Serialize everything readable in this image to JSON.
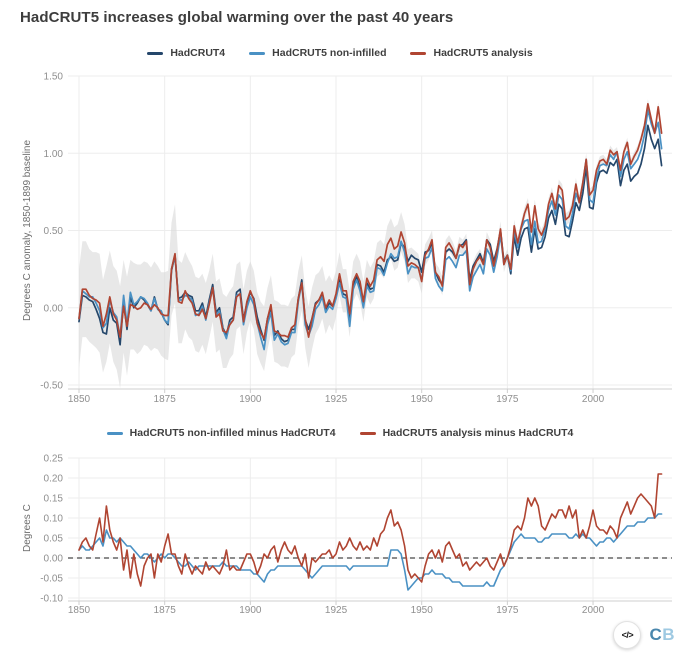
{
  "page": {
    "title": "HadCRUT5 increases global warming over the past 40 years",
    "background": "#ffffff"
  },
  "footer": {
    "embed_label": "</>",
    "logo_c": "C",
    "logo_b": "B",
    "logo_c_color": "#4a87ad",
    "logo_b_color": "#9ec9e2"
  },
  "colors": {
    "hadcrut4": "#25476b",
    "hadcrut5_non_infilled": "#4a91c4",
    "hadcrut5_analysis": "#b04532",
    "uncertainty_band": "#d8d8d8",
    "gridline": "#ededed",
    "axis_line": "#cfcfcf",
    "zero_dashed_line": "#1a1a1a",
    "title_text": "#3d3d3d",
    "tick_text": "#8f8f8f"
  },
  "chart_data": [
    {
      "type": "line",
      "panel": "top",
      "ylabel": "Degrees C anomaly, 1850-1899 baseline",
      "xlabel": "",
      "ylim": [
        -0.5,
        1.5
      ],
      "yticks": [
        1.5,
        1.0,
        0.5,
        0,
        -0.5
      ],
      "xticks": [
        1850,
        1875,
        1900,
        1925,
        1950,
        1975,
        2000
      ],
      "x_start": 1850,
      "x_end": 2020,
      "x_step": 1,
      "grid": true,
      "legend_position": "top-center",
      "uncertainty_band": {
        "applies_to": "HadCRUT5 analysis",
        "color": "#d8d8d8",
        "opacity": 0.6,
        "halfwidth": [
          0.32,
          0.31,
          0.31,
          0.3,
          0.3,
          0.31,
          0.32,
          0.3,
          0.31,
          0.3,
          0.31,
          0.32,
          0.33,
          0.3,
          0.32,
          0.29,
          0.28,
          0.29,
          0.28,
          0.27,
          0.27,
          0.27,
          0.28,
          0.27,
          0.27,
          0.28,
          0.29,
          0.3,
          0.32,
          0.27,
          0.26,
          0.25,
          0.25,
          0.24,
          0.24,
          0.24,
          0.23,
          0.23,
          0.22,
          0.22,
          0.23,
          0.23,
          0.24,
          0.23,
          0.22,
          0.22,
          0.21,
          0.21,
          0.21,
          0.2,
          0.19,
          0.19,
          0.2,
          0.2,
          0.21,
          0.2,
          0.19,
          0.2,
          0.2,
          0.2,
          0.2,
          0.2,
          0.19,
          0.19,
          0.18,
          0.18,
          0.19,
          0.2,
          0.2,
          0.19,
          0.18,
          0.17,
          0.17,
          0.16,
          0.16,
          0.15,
          0.14,
          0.14,
          0.14,
          0.15,
          0.13,
          0.13,
          0.13,
          0.13,
          0.12,
          0.12,
          0.12,
          0.11,
          0.11,
          0.11,
          0.12,
          0.13,
          0.14,
          0.14,
          0.13,
          0.12,
          0.11,
          0.1,
          0.09,
          0.09,
          0.08,
          0.07,
          0.07,
          0.06,
          0.06,
          0.06,
          0.06,
          0.05,
          0.05,
          0.05,
          0.05,
          0.05,
          0.05,
          0.05,
          0.05,
          0.05,
          0.05,
          0.05,
          0.05,
          0.05,
          0.05,
          0.05,
          0.05,
          0.05,
          0.05,
          0.04,
          0.04,
          0.04,
          0.04,
          0.04,
          0.04,
          0.04,
          0.04,
          0.04,
          0.04,
          0.04,
          0.04,
          0.04,
          0.04,
          0.04,
          0.04,
          0.04,
          0.04,
          0.04,
          0.04,
          0.04,
          0.04,
          0.04,
          0.04,
          0.04,
          0.03,
          0.03,
          0.03,
          0.03,
          0.03,
          0.03,
          0.03,
          0.03,
          0.03,
          0.03,
          0.03,
          0.03,
          0.03,
          0.03,
          0.03,
          0.03,
          0.03,
          0.03,
          0.03,
          0.03,
          0.03
        ]
      },
      "series": [
        {
          "name": "HadCRUT4",
          "color": "#25476b",
          "values_note": "computed at render as 'HadCRUT5 analysis' minus the 'HadCRUT5 analysis minus HadCRUT4' series of the bottom panel"
        },
        {
          "name": "HadCRUT5 non-infilled",
          "color": "#4a91c4",
          "values_note": "computed at render as HadCRUT4 plus the 'HadCRUT5 non-infilled minus HadCRUT4' series of the bottom panel"
        },
        {
          "name": "HadCRUT5 analysis",
          "color": "#b04532",
          "values": [
            -0.07,
            0.12,
            0.12,
            0.08,
            0.06,
            0.05,
            0.03,
            -0.12,
            -0.04,
            0.07,
            -0.04,
            -0.08,
            -0.19,
            0.01,
            -0.12,
            0.02,
            0.01,
            -0.01,
            0.0,
            0.03,
            0.02,
            -0.01,
            0.02,
            0.0,
            -0.04,
            -0.05,
            -0.05,
            0.25,
            0.35,
            0.04,
            0.03,
            0.11,
            0.06,
            0.03,
            -0.04,
            -0.05,
            -0.01,
            -0.07,
            0.02,
            0.13,
            -0.06,
            -0.04,
            -0.15,
            -0.16,
            -0.11,
            -0.08,
            0.07,
            0.09,
            -0.09,
            0.04,
            0.11,
            0.05,
            -0.1,
            -0.16,
            -0.2,
            -0.07,
            0.02,
            -0.15,
            -0.16,
            -0.18,
            -0.18,
            -0.19,
            -0.13,
            -0.11,
            0.06,
            0.16,
            -0.07,
            -0.19,
            -0.07,
            0.02,
            0.05,
            0.1,
            0.0,
            0.05,
            0.01,
            0.09,
            0.22,
            0.11,
            0.11,
            -0.04,
            0.17,
            0.22,
            0.17,
            0.04,
            0.19,
            0.14,
            0.18,
            0.31,
            0.33,
            0.3,
            0.41,
            0.45,
            0.38,
            0.4,
            0.49,
            0.42,
            0.27,
            0.29,
            0.28,
            0.26,
            0.17,
            0.34,
            0.38,
            0.44,
            0.23,
            0.2,
            0.14,
            0.39,
            0.42,
            0.38,
            0.32,
            0.41,
            0.39,
            0.43,
            0.15,
            0.25,
            0.3,
            0.33,
            0.28,
            0.44,
            0.39,
            0.27,
            0.37,
            0.51,
            0.28,
            0.34,
            0.25,
            0.53,
            0.42,
            0.52,
            0.61,
            0.67,
            0.49,
            0.66,
            0.51,
            0.47,
            0.53,
            0.67,
            0.74,
            0.64,
            0.79,
            0.76,
            0.57,
            0.59,
            0.66,
            0.8,
            0.68,
            0.81,
            0.96,
            0.73,
            0.76,
            0.89,
            0.95,
            0.96,
            0.93,
            1.02,
            0.99,
            1.01,
            0.89,
            1.01,
            1.07,
            0.93,
            0.98,
            1.02,
            1.09,
            1.18,
            1.32,
            1.22,
            1.13,
            1.3,
            1.13
          ]
        }
      ]
    },
    {
      "type": "line",
      "panel": "bottom",
      "ylabel": "Degrees C",
      "xlabel": "",
      "ylim": [
        -0.1,
        0.25
      ],
      "yticks": [
        0.25,
        0.2,
        0.15,
        0.1,
        0.05,
        0,
        -0.05,
        -0.1
      ],
      "xticks": [
        1850,
        1875,
        1900,
        1925,
        1950,
        1975,
        2000
      ],
      "x_start": 1850,
      "x_end": 2020,
      "x_step": 1,
      "grid": true,
      "zero_line_dashed": true,
      "legend_position": "top-center",
      "series": [
        {
          "name": "HadCRUT5 non-infilled minus HadCRUT4",
          "color": "#4a91c4",
          "values": [
            0.02,
            0.03,
            0.02,
            0.02,
            0.03,
            0.04,
            0.05,
            0.03,
            0.07,
            0.05,
            0.05,
            0.04,
            0.05,
            0.04,
            0.03,
            0.03,
            0.02,
            0.01,
            0.0,
            0.01,
            0.01,
            0.0,
            -0.01,
            0.0,
            0.01,
            0.0,
            0.01,
            0.01,
            0.0,
            -0.01,
            -0.02,
            -0.02,
            -0.01,
            -0.02,
            -0.03,
            -0.02,
            -0.02,
            -0.02,
            -0.02,
            -0.02,
            -0.02,
            -0.02,
            -0.01,
            -0.02,
            -0.02,
            -0.02,
            -0.02,
            -0.03,
            -0.03,
            -0.03,
            -0.03,
            -0.04,
            -0.04,
            -0.05,
            -0.06,
            -0.04,
            -0.03,
            -0.03,
            -0.02,
            -0.02,
            -0.02,
            -0.02,
            -0.02,
            -0.02,
            -0.02,
            -0.02,
            -0.03,
            -0.04,
            -0.05,
            -0.04,
            -0.03,
            -0.02,
            -0.02,
            -0.02,
            -0.02,
            -0.02,
            -0.02,
            -0.02,
            -0.02,
            -0.03,
            -0.02,
            -0.02,
            -0.02,
            -0.02,
            -0.02,
            -0.02,
            -0.02,
            -0.02,
            -0.02,
            -0.02,
            -0.02,
            0.02,
            0.02,
            0.02,
            0.01,
            -0.03,
            -0.08,
            -0.07,
            -0.06,
            -0.05,
            -0.05,
            -0.04,
            -0.04,
            -0.03,
            -0.04,
            -0.04,
            -0.04,
            -0.05,
            -0.05,
            -0.06,
            -0.06,
            -0.06,
            -0.07,
            -0.07,
            -0.07,
            -0.07,
            -0.07,
            -0.07,
            -0.07,
            -0.06,
            -0.07,
            -0.07,
            -0.05,
            -0.03,
            -0.02,
            0.0,
            0.02,
            0.04,
            0.05,
            0.06,
            0.05,
            0.05,
            0.05,
            0.05,
            0.04,
            0.04,
            0.05,
            0.05,
            0.06,
            0.06,
            0.06,
            0.06,
            0.06,
            0.05,
            0.05,
            0.06,
            0.05,
            0.06,
            0.05,
            0.05,
            0.04,
            0.03,
            0.04,
            0.04,
            0.05,
            0.05,
            0.04,
            0.05,
            0.06,
            0.07,
            0.08,
            0.08,
            0.08,
            0.09,
            0.09,
            0.09,
            0.1,
            0.1,
            0.1,
            0.11,
            0.11
          ]
        },
        {
          "name": "HadCRUT5 analysis minus HadCRUT4",
          "color": "#b04532",
          "values": [
            0.02,
            0.04,
            0.05,
            0.03,
            0.02,
            0.06,
            0.1,
            0.04,
            0.13,
            0.07,
            0.04,
            0.02,
            0.05,
            -0.03,
            0.02,
            -0.05,
            0.01,
            -0.04,
            -0.07,
            -0.02,
            0.0,
            0.01,
            -0.05,
            0.01,
            -0.01,
            0.03,
            0.06,
            0.01,
            0.01,
            -0.02,
            -0.04,
            0.01,
            -0.02,
            -0.04,
            -0.02,
            -0.03,
            -0.04,
            -0.01,
            -0.03,
            -0.02,
            -0.03,
            -0.04,
            -0.02,
            0.02,
            -0.03,
            -0.02,
            -0.03,
            -0.03,
            -0.01,
            0.01,
            0.01,
            -0.01,
            -0.04,
            -0.02,
            0.01,
            0.0,
            0.02,
            0.03,
            -0.01,
            0.02,
            0.04,
            0.02,
            0.01,
            0.03,
            0.0,
            -0.02,
            0.01,
            -0.05,
            0.0,
            -0.01,
            0.0,
            0.01,
            0.01,
            0.02,
            0.0,
            0.01,
            0.04,
            0.02,
            0.03,
            0.05,
            0.03,
            0.02,
            0.04,
            0.02,
            0.03,
            0.02,
            0.05,
            0.03,
            0.06,
            0.07,
            0.1,
            0.12,
            0.08,
            0.09,
            0.07,
            0.03,
            -0.03,
            -0.05,
            -0.04,
            -0.05,
            -0.06,
            -0.02,
            0.01,
            0.02,
            0.0,
            0.02,
            -0.01,
            0.03,
            0.04,
            0.02,
            0.0,
            0.01,
            -0.02,
            -0.01,
            -0.03,
            -0.02,
            -0.01,
            -0.02,
            -0.01,
            0.0,
            -0.02,
            -0.03,
            -0.01,
            0.01,
            -0.02,
            0.0,
            0.03,
            0.07,
            0.08,
            0.07,
            0.1,
            0.15,
            0.13,
            0.15,
            0.13,
            0.08,
            0.07,
            0.09,
            0.11,
            0.1,
            0.12,
            0.12,
            0.1,
            0.13,
            0.1,
            0.12,
            0.05,
            0.07,
            0.05,
            0.08,
            0.12,
            0.08,
            0.07,
            0.07,
            0.06,
            0.08,
            0.07,
            0.05,
            0.1,
            0.12,
            0.14,
            0.11,
            0.13,
            0.15,
            0.16,
            0.15,
            0.14,
            0.13,
            0.1,
            0.21,
            0.21
          ]
        }
      ]
    }
  ]
}
